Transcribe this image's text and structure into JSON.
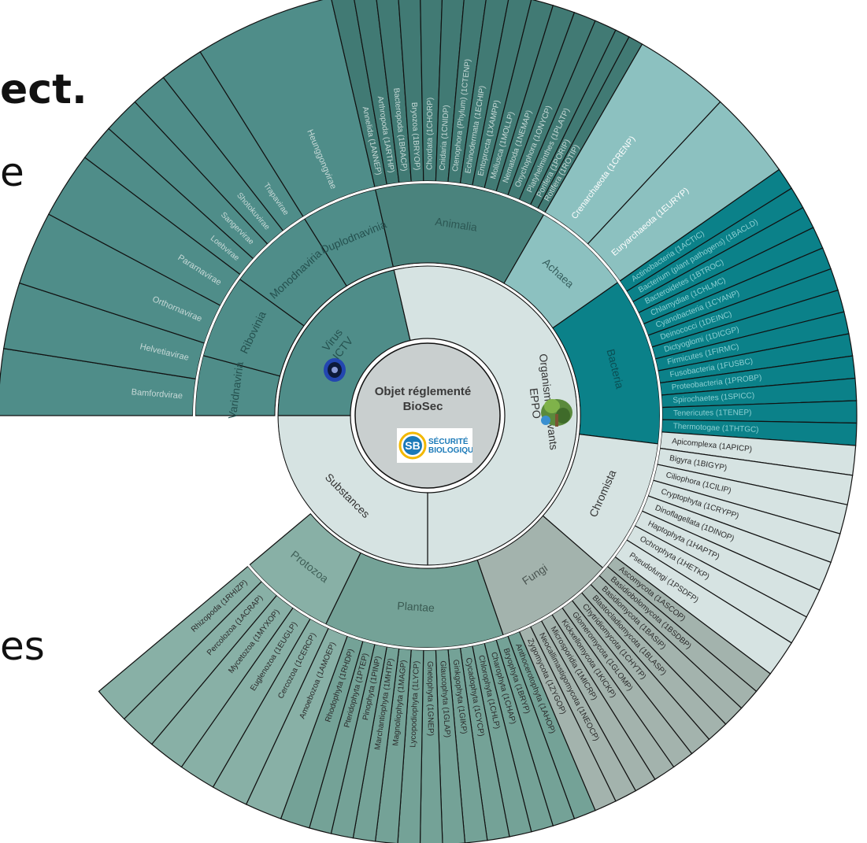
{
  "background_text": [
    {
      "id": "frag1",
      "text": "ect."
    },
    {
      "id": "frag2",
      "text": "e"
    },
    {
      "id": "frag3",
      "text": "es"
    }
  ],
  "center": {
    "title_line1": "Objet réglementé",
    "title_line2": "BioSec",
    "logo_word1": "SÉCURITÉ",
    "logo_word2": "BIOLOGIQUE",
    "logo_letters": "SB"
  },
  "colors": {
    "animal": "#4d8d87",
    "animal_dark": "#417a74",
    "archaea": "#8cc1c0",
    "bacteria": "#0b8189",
    "chromista": "#d6e3e2",
    "fungi": "#a3b3ad",
    "plantae": "#74a297",
    "protozoa": "#88b0a6",
    "virus": "#4f8d89",
    "substances": "#d6e3e2",
    "eppo": "#d6e3e2",
    "center": "#c9cfcf"
  },
  "ring1": [
    {
      "id": "virus",
      "label": "Virus ICTV",
      "lines": [
        "Virus",
        "ICTV"
      ],
      "a0": 270,
      "a1": 347,
      "fill": "#4f8d89",
      "color": "#25514f"
    },
    {
      "id": "eppo",
      "label": "Organismes vivants EPPO",
      "lines": [
        "Organismes vivants",
        "EPPO"
      ],
      "a0": 347,
      "a1": 180,
      "fill": "#d6e3e2",
      "color": "#333333"
    },
    {
      "id": "substances",
      "label": "Substances",
      "lines": [
        "Substances"
      ],
      "a0": 180,
      "a1": 270,
      "fill": "#d6e3e2",
      "color": "#333333"
    }
  ],
  "ring2": [
    {
      "id": "varidnaviria",
      "label": "Varidnaviria",
      "a0": 270,
      "a1": 285,
      "fill": "#4f8d89",
      "color": "#25514f"
    },
    {
      "id": "ribovinia",
      "label": "Ribovinia",
      "a0": 285,
      "a1": 306,
      "fill": "#4f8d89",
      "color": "#25514f"
    },
    {
      "id": "monodnaviria",
      "label": "Monodnaviria",
      "a0": 306,
      "a1": 328,
      "fill": "#4f8d89",
      "color": "#25514f"
    },
    {
      "id": "duplodnavinia",
      "label": "Duplodnavinia",
      "a0": 328,
      "a1": 347,
      "fill": "#4f8d89",
      "color": "#25514f"
    },
    {
      "id": "animalia",
      "label": "Animalia",
      "a0": 347,
      "a1": 30,
      "fill": "#4a837d",
      "color": "#2c5753"
    },
    {
      "id": "achaea",
      "label": "Achaea",
      "a0": 30,
      "a1": 55,
      "fill": "#8cc1c0",
      "color": "#375f5e"
    },
    {
      "id": "bacteria",
      "label": "Bacteria",
      "a0": 55,
      "a1": 97,
      "fill": "#0b8189",
      "color": "#0b4e53"
    },
    {
      "id": "chromista",
      "label": "Chromista",
      "a0": 97,
      "a1": 131,
      "fill": "#d6e3e2",
      "color": "#333333"
    },
    {
      "id": "fungi",
      "label": "Fungi",
      "a0": 131,
      "a1": 161,
      "fill": "#a3b3ad",
      "color": "#4a5551"
    },
    {
      "id": "plantae",
      "label": "Plantae",
      "a0": 161,
      "a1": 206,
      "fill": "#74a297",
      "color": "#3a5a52"
    },
    {
      "id": "protozoa",
      "label": "Protozoa",
      "a0": 206,
      "a1": 230,
      "fill": "#88b0a6",
      "color": "#3f5f57"
    },
    {
      "id": "substances-outer",
      "label": "",
      "a0": 180,
      "a1": 270,
      "fill": "none",
      "color": "#333333"
    }
  ],
  "ring3": [
    {
      "label": "Bamfordvirae",
      "a0": 270,
      "a1": 279,
      "fill": "#4f8d89",
      "color": "#c7d9d7"
    },
    {
      "label": "Helvetiavirae",
      "a0": 279,
      "a1": 288,
      "fill": "#4f8d89",
      "color": "#c7d9d7"
    },
    {
      "label": "Orthornavirae",
      "a0": 288,
      "a1": 298,
      "fill": "#4f8d89",
      "color": "#c7d9d7"
    },
    {
      "label": "Pararnavirae",
      "a0": 298,
      "a1": 307,
      "fill": "#4f8d89",
      "color": "#c7d9d7"
    },
    {
      "label": "Loebvirae",
      "a0": 307,
      "a1": 312,
      "fill": "#4f8d89",
      "color": "#c7d9d7"
    },
    {
      "label": "Sangervirae",
      "a0": 312,
      "a1": 317,
      "fill": "#4f8d89",
      "color": "#c7d9d7"
    },
    {
      "label": "Shotokuvirae",
      "a0": 317,
      "a1": 322,
      "fill": "#4f8d89",
      "color": "#c7d9d7"
    },
    {
      "label": "Trapavirae",
      "a0": 322,
      "a1": 328,
      "fill": "#4f8d89",
      "color": "#c7d9d7"
    },
    {
      "label": "Heunggongvirae",
      "a0": 328,
      "a1": 347,
      "fill": "#4f8d89",
      "color": "#c7d9d7"
    },
    {
      "label": "Annelida (1ANNEP)",
      "a0": 347,
      "a1": 350,
      "fill": "#417a74",
      "color": "#c7d9d7"
    },
    {
      "label": "Arthropoda (1ARTHP)",
      "a0": 350,
      "a1": 353,
      "fill": "#417a74",
      "color": "#c7d9d7"
    },
    {
      "label": "Bacteropoda (1BRACP)",
      "a0": 353,
      "a1": 356,
      "fill": "#417a74",
      "color": "#c7d9d7"
    },
    {
      "label": "Bryozoa (1BRYOP)",
      "a0": 356,
      "a1": 359,
      "fill": "#417a74",
      "color": "#c7d9d7"
    },
    {
      "label": "Chordata (1CHORP)",
      "a0": 359,
      "a1": 362,
      "fill": "#417a74",
      "color": "#c7d9d7"
    },
    {
      "label": "Cnidaria (1CNIDP)",
      "a0": 362,
      "a1": 365,
      "fill": "#417a74",
      "color": "#c7d9d7"
    },
    {
      "label": "Ctenophora (Phylum) (1CTENP)",
      "a0": 365,
      "a1": 368,
      "fill": "#417a74",
      "color": "#c7d9d7"
    },
    {
      "label": "Echinodermata (1ECHIP)",
      "a0": 368,
      "a1": 371,
      "fill": "#417a74",
      "color": "#c7d9d7"
    },
    {
      "label": "Entoprocta (1XAMPP)",
      "a0": 371,
      "a1": 374,
      "fill": "#417a74",
      "color": "#c7d9d7"
    },
    {
      "label": "Mollusca (1MOLLP)",
      "a0": 374,
      "a1": 377,
      "fill": "#417a74",
      "color": "#c7d9d7"
    },
    {
      "label": "Nematoda (1NEMAP)",
      "a0": 377,
      "a1": 380,
      "fill": "#417a74",
      "color": "#c7d9d7"
    },
    {
      "label": "Onychophora (1ONYCP)",
      "a0": 380,
      "a1": 383,
      "fill": "#417a74",
      "color": "#c7d9d7"
    },
    {
      "label": "Platyhelminthes (1PLATP)",
      "a0": 383,
      "a1": 386,
      "fill": "#417a74",
      "color": "#c7d9d7"
    },
    {
      "label": "Porifera (1PORIP)",
      "a0": 386,
      "a1": 388,
      "fill": "#417a74",
      "color": "#c7d9d7"
    },
    {
      "label": "Rotifera (1ROTIP)",
      "a0": 388,
      "a1": 390,
      "fill": "#417a74",
      "color": "#c7d9d7"
    },
    {
      "label": "Crenarchaeota (1CRENP)",
      "a0": 390,
      "a1": 403,
      "fill": "#8cc1c0",
      "color": "#ffffff"
    },
    {
      "label": "Euryarchaeota (1EURYP)",
      "a0": 403,
      "a1": 415,
      "fill": "#8cc1c0",
      "color": "#ffffff"
    },
    {
      "label": "Actinobacteria (1ACTIC)",
      "a0": 415,
      "a1": 418,
      "fill": "#0b8189",
      "color": "#8ed0d3"
    },
    {
      "label": "Bacterium (plant pathogens) (1BACLD)",
      "a0": 418,
      "a1": 421,
      "fill": "#0b8189",
      "color": "#8ed0d3"
    },
    {
      "label": "Bacteroidetes (1BTROC)",
      "a0": 421,
      "a1": 424,
      "fill": "#0b8189",
      "color": "#8ed0d3"
    },
    {
      "label": "Chlamydiae (1CHLMC)",
      "a0": 424,
      "a1": 427,
      "fill": "#0b8189",
      "color": "#8ed0d3"
    },
    {
      "label": "Cyanobacteria (1CYANP)",
      "a0": 427,
      "a1": 430,
      "fill": "#0b8189",
      "color": "#8ed0d3"
    },
    {
      "label": "Deinococci (1DEINC)",
      "a0": 430,
      "a1": 433,
      "fill": "#0b8189",
      "color": "#8ed0d3"
    },
    {
      "label": "Dictyoglomi (1DICGP)",
      "a0": 433,
      "a1": 436,
      "fill": "#0b8189",
      "color": "#8ed0d3"
    },
    {
      "label": "Firmicutes (1FIRMC)",
      "a0": 436,
      "a1": 439,
      "fill": "#0b8189",
      "color": "#8ed0d3"
    },
    {
      "label": "Fusobacteria (1FUSBC)",
      "a0": 439,
      "a1": 442,
      "fill": "#0b8189",
      "color": "#8ed0d3"
    },
    {
      "label": "Proteobacteria (1PROBP)",
      "a0": 442,
      "a1": 445,
      "fill": "#0b8189",
      "color": "#8ed0d3"
    },
    {
      "label": "Spirochaetes (1SPICC)",
      "a0": 445,
      "a1": 448,
      "fill": "#0b8189",
      "color": "#8ed0d3"
    },
    {
      "label": "Tenericutes (1TENEP)",
      "a0": 448,
      "a1": 451,
      "fill": "#0b8189",
      "color": "#8ed0d3"
    },
    {
      "label": "Thermotogae (1THTGC)",
      "a0": 451,
      "a1": 454,
      "fill": "#0b8189",
      "color": "#8ed0d3"
    },
    {
      "label": "Apicomplexa (1APICP)",
      "a0": 454,
      "a1": 458,
      "fill": "#d6e3e2",
      "color": "#2a2a2a"
    },
    {
      "label": "Bigyra (1BIGYP)",
      "a0": 458,
      "a1": 462,
      "fill": "#d6e3e2",
      "color": "#2a2a2a"
    },
    {
      "label": "Ciliophora (1CILIP)",
      "a0": 462,
      "a1": 466,
      "fill": "#d6e3e2",
      "color": "#2a2a2a"
    },
    {
      "label": "Cryptophyta (1CRYPP)",
      "a0": 466,
      "a1": 470,
      "fill": "#d6e3e2",
      "color": "#2a2a2a"
    },
    {
      "label": "Dinoflagellata (1DINOP)",
      "a0": 470,
      "a1": 474,
      "fill": "#d6e3e2",
      "color": "#2a2a2a"
    },
    {
      "label": "Haptophyta (1HAPTP)",
      "a0": 474,
      "a1": 478,
      "fill": "#d6e3e2",
      "color": "#2a2a2a"
    },
    {
      "label": "Ochrophyta (1HETKP)",
      "a0": 478,
      "a1": 482,
      "fill": "#d6e3e2",
      "color": "#2a2a2a"
    },
    {
      "label": "Pseudofungi (1PSDFP)",
      "a0": 482,
      "a1": 487,
      "fill": "#d6e3e2",
      "color": "#2a2a2a"
    },
    {
      "label": "Ascomycota (1ASCOP)",
      "a0": 487,
      "a1": 490,
      "fill": "#a3b3ad",
      "color": "#2a2a2a"
    },
    {
      "label": "Basidiobolomycota (1BSDBP)",
      "a0": 490,
      "a1": 493,
      "fill": "#a3b3ad",
      "color": "#2a2a2a"
    },
    {
      "label": "Basidiomycota (1BASIP)",
      "a0": 493,
      "a1": 496,
      "fill": "#a3b3ad",
      "color": "#2a2a2a"
    },
    {
      "label": "Blastocladiomycota (1BLASP)",
      "a0": 496,
      "a1": 499,
      "fill": "#a3b3ad",
      "color": "#2a2a2a"
    },
    {
      "label": "Chytridiomycota (1CHYTP)",
      "a0": 499,
      "a1": 502,
      "fill": "#a3b3ad",
      "color": "#2a2a2a"
    },
    {
      "label": "Glomeromycota (1GLOMP)",
      "a0": 502,
      "a1": 505,
      "fill": "#a3b3ad",
      "color": "#2a2a2a"
    },
    {
      "label": "Kickxellomycota (1KICKP)",
      "a0": 505,
      "a1": 508,
      "fill": "#a3b3ad",
      "color": "#2a2a2a"
    },
    {
      "label": "Microsporidia (1MICRP)",
      "a0": 508,
      "a1": 511,
      "fill": "#a3b3ad",
      "color": "#2a2a2a"
    },
    {
      "label": "Neocallimastigomycota (1NEOCP)",
      "a0": 511,
      "a1": 514,
      "fill": "#a3b3ad",
      "color": "#2a2a2a"
    },
    {
      "label": "Zygomycota (1ZYGOP)",
      "a0": 514,
      "a1": 517,
      "fill": "#a3b3ad",
      "color": "#2a2a2a"
    },
    {
      "label": "Anthocerotophyta (1AHOP)",
      "a0": 517,
      "a1": 520,
      "fill": "#74a297",
      "color": "#2a2a2a"
    },
    {
      "label": "Bryophyta (1BRYP)",
      "a0": 520,
      "a1": 523,
      "fill": "#74a297",
      "color": "#2a2a2a"
    },
    {
      "label": "Charophyta (1CHAP)",
      "a0": 523,
      "a1": 526,
      "fill": "#74a297",
      "color": "#2a2a2a"
    },
    {
      "label": "Chlorophyta (1CHLP)",
      "a0": 526,
      "a1": 529,
      "fill": "#74a297",
      "color": "#2a2a2a"
    },
    {
      "label": "Cycadophyta (1CYCP)",
      "a0": 529,
      "a1": 532,
      "fill": "#74a297",
      "color": "#2a2a2a"
    },
    {
      "label": "Ginkgophyta (1GIKP)",
      "a0": 532,
      "a1": 535,
      "fill": "#74a297",
      "color": "#2a2a2a"
    },
    {
      "label": "Glaucophyta (1GLAP)",
      "a0": 535,
      "a1": 538,
      "fill": "#74a297",
      "color": "#2a2a2a"
    },
    {
      "label": "Gnetophyta (1GNEP)",
      "a0": 538,
      "a1": 541,
      "fill": "#74a297",
      "color": "#2a2a2a"
    },
    {
      "label": "Lycopodiophyta (1LYCP)",
      "a0": 541,
      "a1": 544,
      "fill": "#74a297",
      "color": "#2a2a2a"
    },
    {
      "label": "Magnoliophyta (1MAGP)",
      "a0": 544,
      "a1": 547,
      "fill": "#74a297",
      "color": "#2a2a2a"
    },
    {
      "label": "Marchantiophyta (1MHTP)",
      "a0": 547,
      "a1": 550,
      "fill": "#74a297",
      "color": "#2a2a2a"
    },
    {
      "label": "Pinophyta (1PINP)",
      "a0": 550,
      "a1": 553,
      "fill": "#74a297",
      "color": "#2a2a2a"
    },
    {
      "label": "Pteridophyta (1PTEP)",
      "a0": 553,
      "a1": 556,
      "fill": "#74a297",
      "color": "#2a2a2a"
    },
    {
      "label": "Rhodophyta (1RHDP)",
      "a0": 556,
      "a1": 560,
      "fill": "#74a297",
      "color": "#2a2a2a"
    },
    {
      "label": "Amoebozoa (1AMOEP)",
      "a0": 560,
      "a1": 565,
      "fill": "#88b0a6",
      "color": "#2a2a2a"
    },
    {
      "label": "Cercozoa (1CERCP)",
      "a0": 565,
      "a1": 570,
      "fill": "#88b0a6",
      "color": "#2a2a2a"
    },
    {
      "label": "Euglenozoa (1EUGLP)",
      "a0": 570,
      "a1": 575,
      "fill": "#88b0a6",
      "color": "#2a2a2a"
    },
    {
      "label": "Mycetozoa (1MYXOP)",
      "a0": 575,
      "a1": 580,
      "fill": "#88b0a6",
      "color": "#2a2a2a"
    },
    {
      "label": "Percolozoa (1ACRAP)",
      "a0": 580,
      "a1": 585,
      "fill": "#88b0a6",
      "color": "#2a2a2a"
    },
    {
      "label": "Rhizopoda (1RHIZP)",
      "a0": 585,
      "a1": 590,
      "fill": "#88b0a6",
      "color": "#2a2a2a"
    }
  ]
}
